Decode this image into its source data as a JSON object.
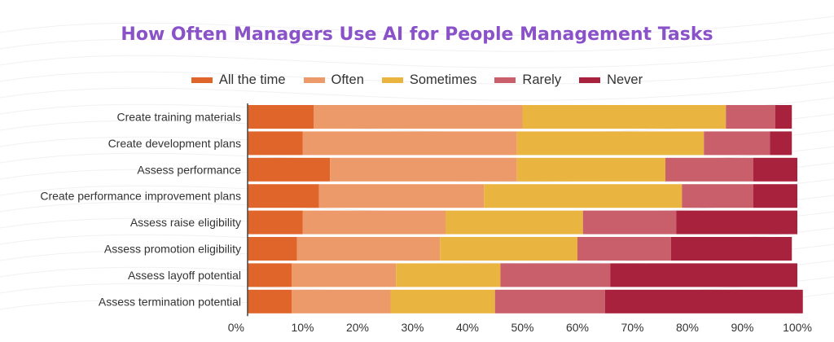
{
  "chart_data": {
    "type": "bar",
    "orientation": "horizontal",
    "stacked": true,
    "title": "How Often Managers Use AI for People Management Tasks",
    "categories": [
      "Create training materials",
      "Create development plans",
      "Assess performance",
      "Create performance improvement plans",
      "Assess raise eligibility",
      "Assess promotion eligibility",
      "Assess layoff potential",
      "Assess termination potential"
    ],
    "series": [
      {
        "name": "All the time",
        "color": "#e0652a",
        "values": [
          12,
          10,
          15,
          13,
          10,
          9,
          8,
          8
        ]
      },
      {
        "name": "Often",
        "color": "#ec9a69",
        "values": [
          38,
          39,
          34,
          30,
          26,
          26,
          19,
          18
        ]
      },
      {
        "name": "Sometimes",
        "color": "#e9b540",
        "values": [
          37,
          34,
          27,
          36,
          25,
          25,
          19,
          19
        ]
      },
      {
        "name": "Rarely",
        "color": "#c95f6a",
        "values": [
          9,
          12,
          16,
          13,
          17,
          17,
          20,
          20
        ]
      },
      {
        "name": "Never",
        "color": "#a8213d",
        "values": [
          3,
          4,
          8,
          8,
          22,
          22,
          34,
          36
        ]
      }
    ],
    "xlim": [
      0,
      100
    ],
    "xticks": [
      "0%",
      "10%",
      "20%",
      "30%",
      "40%",
      "50%",
      "60%",
      "70%",
      "80%",
      "90%",
      "100%"
    ],
    "legend_position": "top",
    "grid": false
  }
}
